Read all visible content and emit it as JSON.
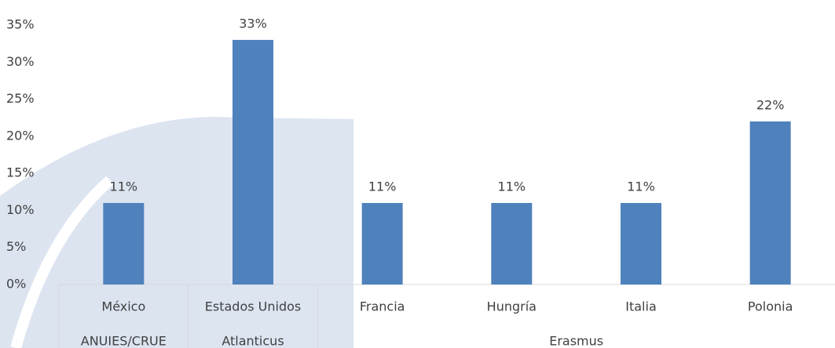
{
  "chart_data": {
    "type": "bar",
    "categories": [
      "México",
      "Estados Unidos",
      "Francia",
      "Hungría",
      "Italia",
      "Polonia"
    ],
    "groups": [
      {
        "name": "ANUIES/CRUE",
        "categories": [
          "México"
        ]
      },
      {
        "name": "Atlanticus",
        "categories": [
          "Estados Unidos"
        ]
      },
      {
        "name": "Erasmus",
        "categories": [
          "Francia",
          "Hungría",
          "Italia",
          "Polonia"
        ]
      }
    ],
    "values": [
      11,
      33,
      11,
      11,
      11,
      22
    ],
    "value_labels": [
      "11%",
      "33%",
      "11%",
      "11%",
      "11%",
      "22%"
    ],
    "color": "#4f81bd",
    "ylim": [
      0,
      35
    ],
    "yticks": [
      {
        "value": 0,
        "label": "0%"
      },
      {
        "value": 5,
        "label": "5%"
      },
      {
        "value": 10,
        "label": "10%"
      },
      {
        "value": 15,
        "label": "15%"
      },
      {
        "value": 20,
        "label": "20%"
      },
      {
        "value": 25,
        "label": "25%"
      },
      {
        "value": 30,
        "label": "30%"
      },
      {
        "value": 35,
        "label": "35%"
      }
    ],
    "grid": false
  }
}
